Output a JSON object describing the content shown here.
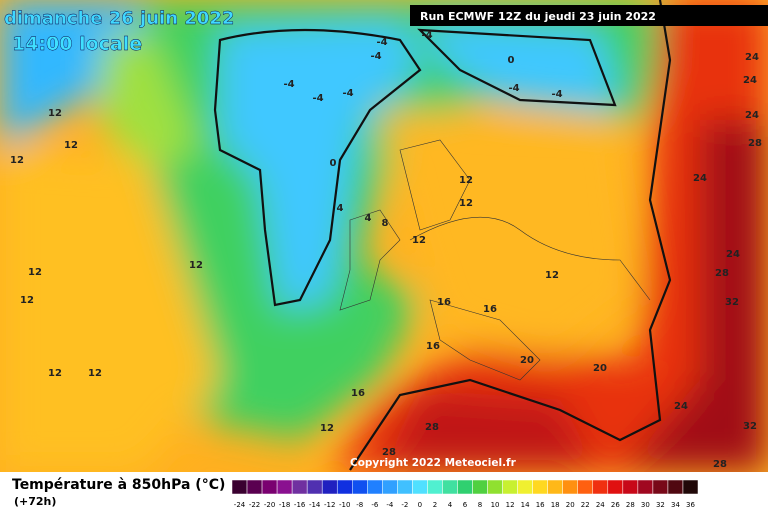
{
  "header": {
    "date": "dimanche 26 juin 2022",
    "time": "14:00 locale",
    "run": "Run ECMWF 12Z du jeudi 23 juin 2022"
  },
  "copyright": "Copyright 2022 Meteociel.fr",
  "legend": {
    "title": "Température à 850hPa (°C)",
    "lead": "(+72h)",
    "ticks": [
      -24,
      -22,
      -20,
      -18,
      -16,
      -14,
      -12,
      -10,
      -8,
      -6,
      -4,
      -2,
      0,
      2,
      4,
      6,
      8,
      10,
      12,
      14,
      16,
      18,
      20,
      22,
      24,
      26,
      28,
      30,
      32,
      34,
      36
    ],
    "colors": [
      "#3a0030",
      "#5a0050",
      "#7a0070",
      "#8a1090",
      "#7030a0",
      "#5030b0",
      "#2020c0",
      "#1030e0",
      "#1050f0",
      "#2080ff",
      "#30a0ff",
      "#40c0ff",
      "#50e0ff",
      "#50f0d0",
      "#40e0a0",
      "#30d070",
      "#50d040",
      "#90e030",
      "#c8f030",
      "#f0f030",
      "#ffd820",
      "#ffb818",
      "#ff9010",
      "#ff6010",
      "#f03010",
      "#e01010",
      "#c80818",
      "#a00820",
      "#780818",
      "#500810",
      "#200808"
    ]
  },
  "contours": [
    12,
    12,
    12,
    12,
    12,
    12,
    12,
    12,
    -4,
    -4,
    -4,
    -4,
    -4,
    -4,
    -4,
    -4,
    0,
    0,
    4,
    4,
    8,
    12,
    12,
    12,
    12,
    16,
    16,
    16,
    16,
    20,
    20,
    24,
    24,
    24,
    28,
    24,
    24,
    28,
    32,
    24,
    32,
    28,
    28,
    12,
    28
  ]
}
